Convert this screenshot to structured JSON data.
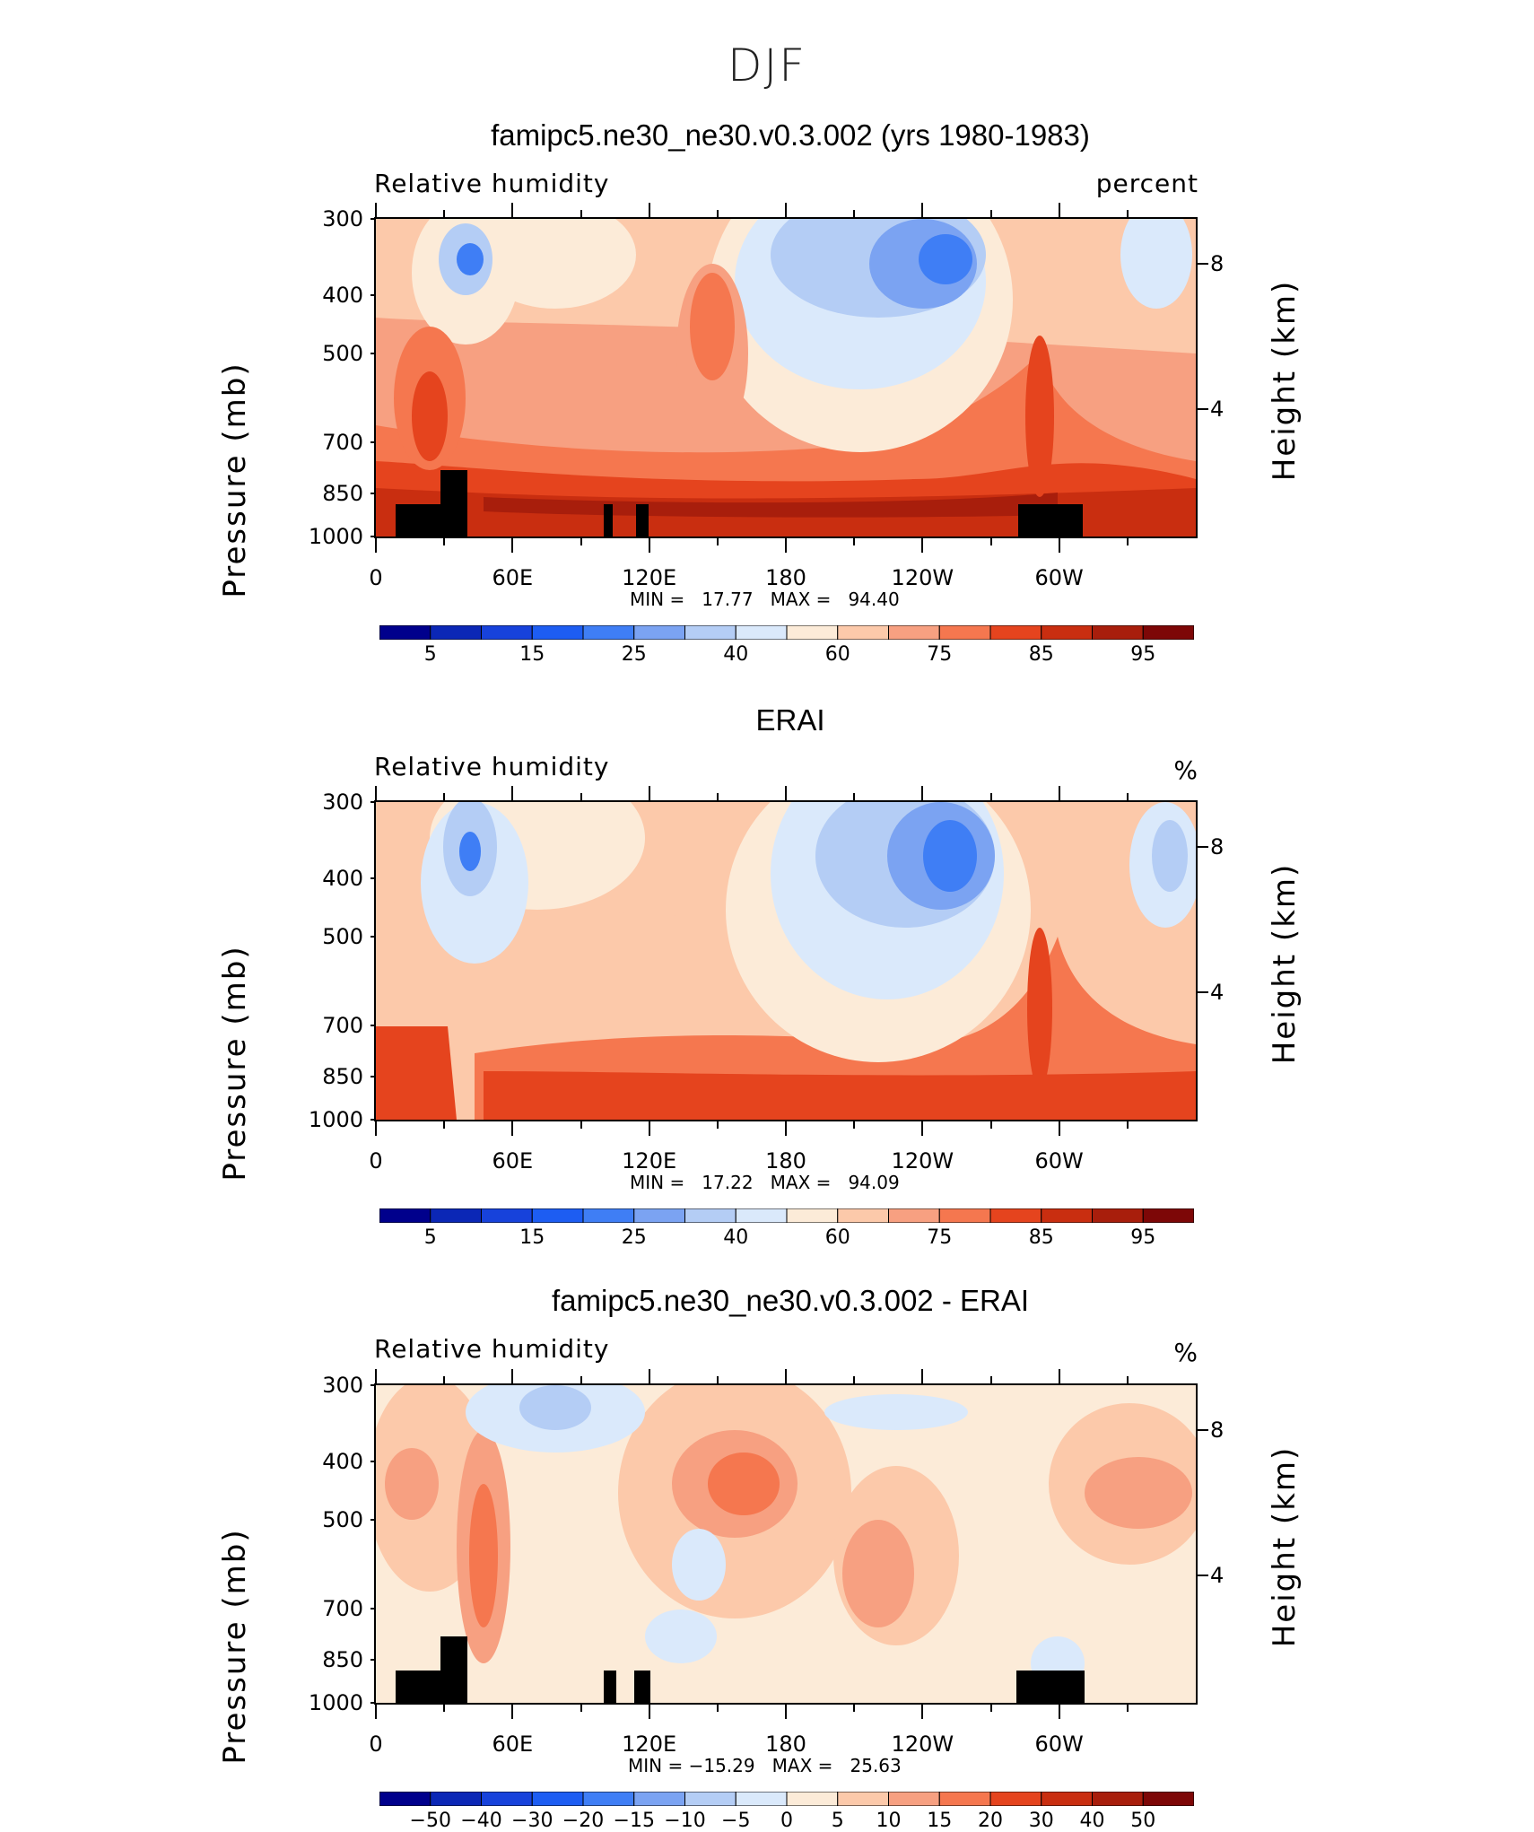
{
  "suptitle": "DJF",
  "panels": [
    {
      "title": "famipc5.ne30_ne30.v0.3.002 (yrs 1980-1983)",
      "left_string": "Relative humidity",
      "right_string": "percent",
      "ylabel": "Pressure (mb)",
      "ylabel_right": "Height (km)",
      "stats": "MIN =   17.77   MAX =   94.40",
      "colorbar_labels": [
        "5",
        "15",
        "25",
        "40",
        "60",
        "75",
        "85",
        "95"
      ]
    },
    {
      "title": "ERAI",
      "left_string": "Relative humidity",
      "right_string": "%",
      "ylabel": "Pressure (mb)",
      "ylabel_right": "Height (km)",
      "stats": "MIN =   17.22   MAX =   94.09",
      "colorbar_labels": [
        "5",
        "15",
        "25",
        "40",
        "60",
        "75",
        "85",
        "95"
      ]
    },
    {
      "title": "famipc5.ne30_ne30.v0.3.002 - ERAI",
      "left_string": "Relative humidity",
      "right_string": "%",
      "ylabel": "Pressure (mb)",
      "ylabel_right": "Height (km)",
      "stats": "MIN = −15.29   MAX =   25.63",
      "colorbar_labels": [
        "−50",
        "−40",
        "−30",
        "−20",
        "−15",
        "−10",
        "−5",
        "0",
        "5",
        "10",
        "15",
        "20",
        "30",
        "40",
        "50"
      ]
    }
  ],
  "axes": {
    "pressure_ticks": [
      "300",
      "400",
      "500",
      "700",
      "850",
      "1000"
    ],
    "height_ticks": [
      "8",
      "4"
    ],
    "lon_ticks": [
      "0",
      "60E",
      "120E",
      "180",
      "120W",
      "60W"
    ]
  },
  "colors": {
    "seq": [
      "#00008c",
      "#0b27b6",
      "#1742db",
      "#1d5df2",
      "#3f7ef5",
      "#7ba3f2",
      "#b4cdf5",
      "#dae9fb",
      "#fcebd8",
      "#fcc9aa",
      "#f7a081",
      "#f5774f",
      "#e5441e",
      "#c92e10",
      "#a81e0c",
      "#7d0707"
    ],
    "diff": [
      "#00008c",
      "#0b27b6",
      "#1742db",
      "#1d5df2",
      "#3f7ef5",
      "#7ba3f2",
      "#b4cdf5",
      "#dae9fb",
      "#fcebd8",
      "#fcc9aa",
      "#f7a081",
      "#f5774f",
      "#e5441e",
      "#c92e10",
      "#a81e0c",
      "#7d0707"
    ],
    "topography": "#000000"
  },
  "chart_data": [
    {
      "type": "heatmap",
      "title": "famipc5.ne30_ne30.v0.3.002 (yrs 1980-1983)",
      "variable": "Relative humidity",
      "units": "percent",
      "xlabel": "",
      "ylabel": "Pressure (mb)",
      "ylabel_right": "Height (km)",
      "x_range": [
        0,
        360
      ],
      "y_range_mb": [
        1000,
        300
      ],
      "min": 17.77,
      "max": 94.4,
      "levels": [
        5,
        10,
        15,
        20,
        25,
        30,
        40,
        50,
        60,
        70,
        75,
        80,
        85,
        90,
        95
      ]
    },
    {
      "type": "heatmap",
      "title": "ERAI",
      "variable": "Relative humidity",
      "units": "%",
      "xlabel": "",
      "ylabel": "Pressure (mb)",
      "ylabel_right": "Height (km)",
      "x_range": [
        0,
        360
      ],
      "y_range_mb": [
        1000,
        300
      ],
      "min": 17.22,
      "max": 94.09,
      "levels": [
        5,
        10,
        15,
        20,
        25,
        30,
        40,
        50,
        60,
        70,
        75,
        80,
        85,
        90,
        95
      ]
    },
    {
      "type": "heatmap",
      "title": "famipc5.ne30_ne30.v0.3.002 - ERAI",
      "variable": "Relative humidity",
      "units": "%",
      "xlabel": "",
      "ylabel": "Pressure (mb)",
      "ylabel_right": "Height (km)",
      "x_range": [
        0,
        360
      ],
      "y_range_mb": [
        1000,
        300
      ],
      "min": -15.29,
      "max": 25.63,
      "levels": [
        -50,
        -40,
        -30,
        -20,
        -15,
        -10,
        -5,
        0,
        5,
        10,
        15,
        20,
        30,
        40,
        50
      ]
    }
  ]
}
